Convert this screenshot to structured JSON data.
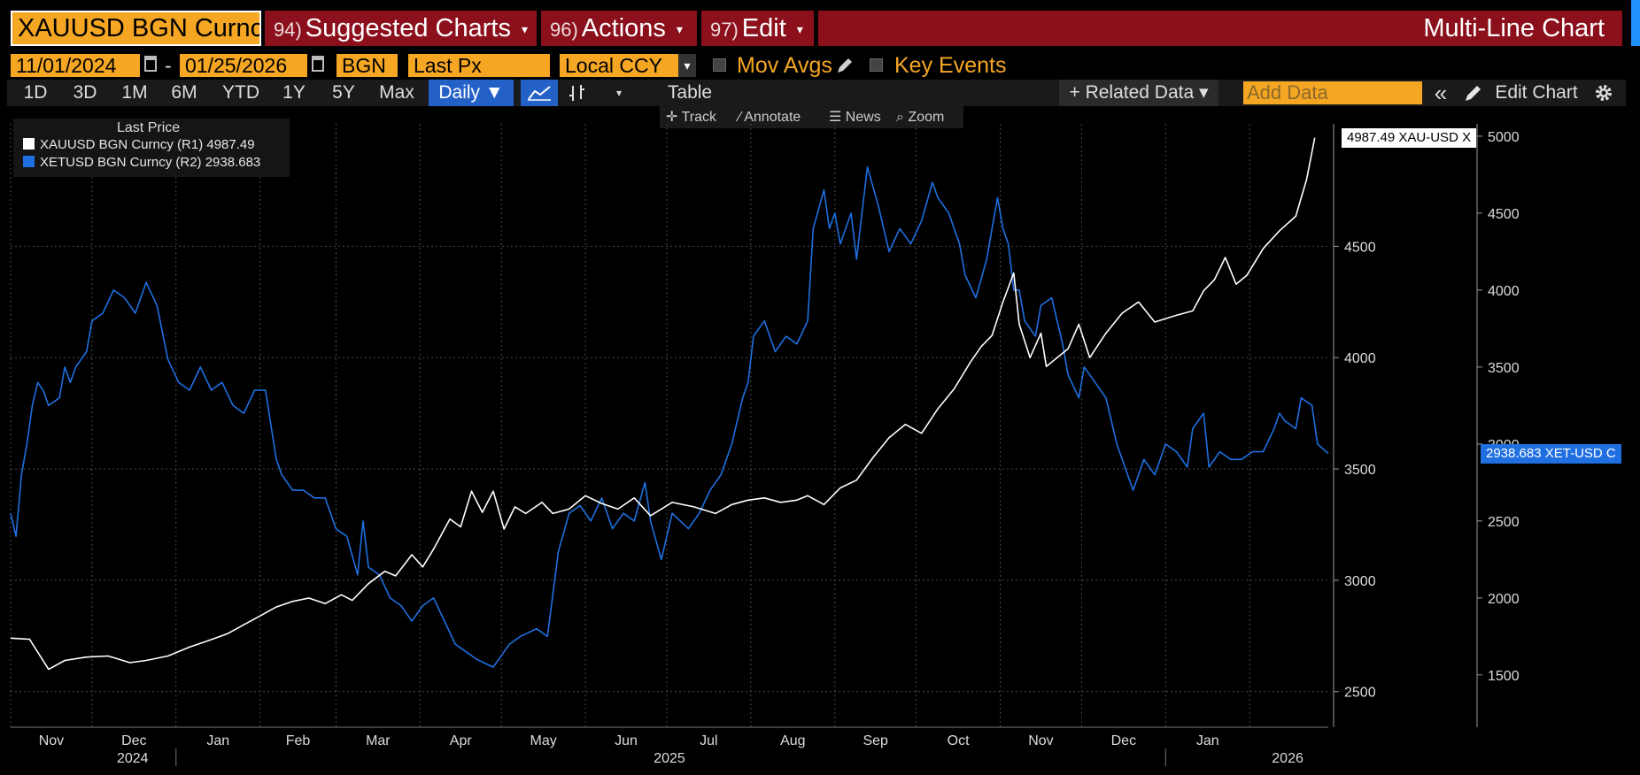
{
  "topbar": {
    "security": "XAUUSD BGN Curncy",
    "menus": [
      {
        "num": "94)",
        "label": "Suggested Charts"
      },
      {
        "num": "96)",
        "label": "Actions"
      },
      {
        "num": "97)",
        "label": "Edit"
      }
    ],
    "title": "Multi-Line Chart",
    "caret": "▾"
  },
  "params": {
    "start_date": "11/01/2024",
    "dash": "-",
    "end_date": "01/25/2026",
    "source": "BGN",
    "field": "Last Px",
    "currency": "Local CCY",
    "mov_avgs": "Mov Avgs",
    "key_events": "Key Events"
  },
  "toolbar": {
    "ranges": [
      "1D",
      "3D",
      "1M",
      "6M",
      "YTD",
      "1Y",
      "5Y",
      "Max"
    ],
    "frequency": "Daily ▼",
    "table": "Table",
    "related": "+ Related Data ▾",
    "add_data_placeholder": "Add Data",
    "collapse": "«",
    "edit_chart": "Edit Chart"
  },
  "subtools": [
    "Track",
    "Annotate",
    "News",
    "Zoom"
  ],
  "legend": {
    "title": "Last Price",
    "rows": [
      {
        "label": "XAUUSD BGN Curncy  (R1) 4987.49",
        "color": "#ffffff"
      },
      {
        "label": "XETUSD BGN Curncy  (R2) 2938.683",
        "color": "#1f6fe0"
      }
    ]
  },
  "tags": {
    "gold": "4987.49 XAU-USD X",
    "eth": "2938.683 XET-USD C"
  },
  "chart_data": {
    "type": "line",
    "title": "Multi-Line Chart",
    "x_range": [
      "2024-11-01",
      "2026-01-25"
    ],
    "x_ticks": [
      "Nov",
      "Dec",
      "Jan",
      "Feb",
      "Mar",
      "Apr",
      "May",
      "Jun",
      "Jul",
      "Aug",
      "Sep",
      "Oct",
      "Nov",
      "Dec",
      "Jan"
    ],
    "x_years": [
      "2024",
      "2025",
      "2026"
    ],
    "axes": {
      "R1": {
        "ticks": [
          2500,
          3000,
          3500,
          4000,
          4500
        ],
        "ylim": [
          2340,
          5050
        ]
      },
      "R2": {
        "ticks": [
          1500,
          2000,
          2500,
          3000,
          3500,
          4000,
          4500,
          5000
        ],
        "ylim": [
          1160,
          5080
        ]
      }
    },
    "grid": true,
    "series": [
      {
        "name": "XAUUSD BGN Curncy",
        "axis": "R1",
        "color": "#ffffff",
        "last": 4987.49,
        "points": [
          [
            0,
            2740
          ],
          [
            7,
            2735
          ],
          [
            14,
            2600
          ],
          [
            20,
            2640
          ],
          [
            28,
            2655
          ],
          [
            36,
            2660
          ],
          [
            44,
            2630
          ],
          [
            50,
            2640
          ],
          [
            58,
            2660
          ],
          [
            66,
            2700
          ],
          [
            72,
            2725
          ],
          [
            80,
            2760
          ],
          [
            86,
            2800
          ],
          [
            92,
            2840
          ],
          [
            98,
            2880
          ],
          [
            104,
            2905
          ],
          [
            110,
            2920
          ],
          [
            116,
            2895
          ],
          [
            122,
            2935
          ],
          [
            126,
            2910
          ],
          [
            132,
            2985
          ],
          [
            138,
            3040
          ],
          [
            142,
            3020
          ],
          [
            148,
            3115
          ],
          [
            152,
            3060
          ],
          [
            156,
            3140
          ],
          [
            162,
            3275
          ],
          [
            166,
            3240
          ],
          [
            170,
            3400
          ],
          [
            174,
            3305
          ],
          [
            178,
            3400
          ],
          [
            182,
            3230
          ],
          [
            186,
            3330
          ],
          [
            190,
            3300
          ],
          [
            196,
            3350
          ],
          [
            200,
            3300
          ],
          [
            206,
            3320
          ],
          [
            212,
            3380
          ],
          [
            218,
            3345
          ],
          [
            224,
            3320
          ],
          [
            230,
            3370
          ],
          [
            236,
            3290
          ],
          [
            244,
            3350
          ],
          [
            252,
            3330
          ],
          [
            260,
            3300
          ],
          [
            266,
            3340
          ],
          [
            272,
            3360
          ],
          [
            278,
            3370
          ],
          [
            284,
            3350
          ],
          [
            290,
            3360
          ],
          [
            294,
            3380
          ],
          [
            300,
            3340
          ],
          [
            306,
            3415
          ],
          [
            312,
            3450
          ],
          [
            318,
            3550
          ],
          [
            324,
            3640
          ],
          [
            330,
            3700
          ],
          [
            336,
            3660
          ],
          [
            342,
            3770
          ],
          [
            348,
            3860
          ],
          [
            354,
            3980
          ],
          [
            358,
            4050
          ],
          [
            362,
            4100
          ],
          [
            366,
            4250
          ],
          [
            370,
            4380
          ],
          [
            372,
            4150
          ],
          [
            376,
            4000
          ],
          [
            380,
            4110
          ],
          [
            382,
            3960
          ],
          [
            386,
            4000
          ],
          [
            390,
            4040
          ],
          [
            394,
            4150
          ],
          [
            398,
            4000
          ],
          [
            404,
            4110
          ],
          [
            410,
            4200
          ],
          [
            416,
            4250
          ],
          [
            422,
            4160
          ],
          [
            430,
            4190
          ],
          [
            436,
            4210
          ],
          [
            440,
            4300
          ],
          [
            444,
            4350
          ],
          [
            448,
            4450
          ],
          [
            452,
            4330
          ],
          [
            456,
            4370
          ],
          [
            462,
            4490
          ],
          [
            468,
            4570
          ],
          [
            474,
            4635
          ],
          [
            478,
            4800
          ],
          [
            481,
            4987.49
          ]
        ]
      },
      {
        "name": "XETUSD BGN Curncy",
        "axis": "R2",
        "color": "#1f6fe0",
        "last": 2938.683,
        "points": [
          [
            0,
            2550
          ],
          [
            2,
            2400
          ],
          [
            4,
            2800
          ],
          [
            6,
            3000
          ],
          [
            8,
            3250
          ],
          [
            10,
            3400
          ],
          [
            12,
            3350
          ],
          [
            14,
            3250
          ],
          [
            18,
            3300
          ],
          [
            20,
            3500
          ],
          [
            22,
            3400
          ],
          [
            24,
            3500
          ],
          [
            28,
            3600
          ],
          [
            30,
            3800
          ],
          [
            34,
            3850
          ],
          [
            38,
            4000
          ],
          [
            42,
            3950
          ],
          [
            46,
            3850
          ],
          [
            50,
            4050
          ],
          [
            54,
            3900
          ],
          [
            58,
            3550
          ],
          [
            62,
            3400
          ],
          [
            66,
            3350
          ],
          [
            70,
            3500
          ],
          [
            74,
            3350
          ],
          [
            78,
            3400
          ],
          [
            82,
            3250
          ],
          [
            86,
            3200
          ],
          [
            90,
            3350
          ],
          [
            94,
            3350
          ],
          [
            98,
            2900
          ],
          [
            100,
            2800
          ],
          [
            104,
            2700
          ],
          [
            108,
            2700
          ],
          [
            112,
            2650
          ],
          [
            116,
            2650
          ],
          [
            120,
            2450
          ],
          [
            124,
            2400
          ],
          [
            128,
            2150
          ],
          [
            130,
            2500
          ],
          [
            132,
            2200
          ],
          [
            136,
            2150
          ],
          [
            140,
            2000
          ],
          [
            144,
            1950
          ],
          [
            148,
            1850
          ],
          [
            152,
            1950
          ],
          [
            156,
            2000
          ],
          [
            160,
            1850
          ],
          [
            164,
            1700
          ],
          [
            168,
            1650
          ],
          [
            172,
            1600
          ],
          [
            178,
            1550
          ],
          [
            184,
            1700
          ],
          [
            188,
            1750
          ],
          [
            194,
            1800
          ],
          [
            198,
            1750
          ],
          [
            202,
            2300
          ],
          [
            206,
            2550
          ],
          [
            210,
            2600
          ],
          [
            214,
            2500
          ],
          [
            218,
            2650
          ],
          [
            222,
            2450
          ],
          [
            226,
            2550
          ],
          [
            230,
            2500
          ],
          [
            234,
            2750
          ],
          [
            236,
            2500
          ],
          [
            240,
            2250
          ],
          [
            244,
            2550
          ],
          [
            250,
            2450
          ],
          [
            254,
            2550
          ],
          [
            258,
            2700
          ],
          [
            262,
            2800
          ],
          [
            266,
            3000
          ],
          [
            270,
            3300
          ],
          [
            272,
            3400
          ],
          [
            274,
            3700
          ],
          [
            278,
            3800
          ],
          [
            282,
            3600
          ],
          [
            286,
            3700
          ],
          [
            290,
            3650
          ],
          [
            294,
            3800
          ],
          [
            296,
            4400
          ],
          [
            300,
            4650
          ],
          [
            302,
            4400
          ],
          [
            304,
            4500
          ],
          [
            306,
            4300
          ],
          [
            310,
            4500
          ],
          [
            312,
            4200
          ],
          [
            316,
            4800
          ],
          [
            320,
            4550
          ],
          [
            324,
            4250
          ],
          [
            328,
            4400
          ],
          [
            332,
            4300
          ],
          [
            336,
            4450
          ],
          [
            340,
            4700
          ],
          [
            342,
            4600
          ],
          [
            346,
            4500
          ],
          [
            350,
            4300
          ],
          [
            352,
            4100
          ],
          [
            356,
            3950
          ],
          [
            360,
            4200
          ],
          [
            362,
            4400
          ],
          [
            364,
            4600
          ],
          [
            366,
            4400
          ],
          [
            368,
            4300
          ],
          [
            370,
            4000
          ],
          [
            372,
            4000
          ],
          [
            374,
            3800
          ],
          [
            378,
            3700
          ],
          [
            380,
            3900
          ],
          [
            384,
            3950
          ],
          [
            386,
            3800
          ],
          [
            388,
            3650
          ],
          [
            390,
            3450
          ],
          [
            394,
            3300
          ],
          [
            396,
            3500
          ],
          [
            400,
            3400
          ],
          [
            404,
            3300
          ],
          [
            408,
            3000
          ],
          [
            412,
            2800
          ],
          [
            414,
            2700
          ],
          [
            418,
            2900
          ],
          [
            422,
            2800
          ],
          [
            426,
            3000
          ],
          [
            430,
            2950
          ],
          [
            434,
            2850
          ],
          [
            436,
            3100
          ],
          [
            440,
            3200
          ],
          [
            442,
            2850
          ],
          [
            446,
            2950
          ],
          [
            450,
            2900
          ],
          [
            454,
            2900
          ],
          [
            458,
            2950
          ],
          [
            462,
            2950
          ],
          [
            466,
            3100
          ],
          [
            468,
            3200
          ],
          [
            470,
            3150
          ],
          [
            474,
            3100
          ],
          [
            476,
            3300
          ],
          [
            480,
            3250
          ],
          [
            482,
            3000
          ],
          [
            486,
            2938.683
          ]
        ]
      }
    ]
  }
}
